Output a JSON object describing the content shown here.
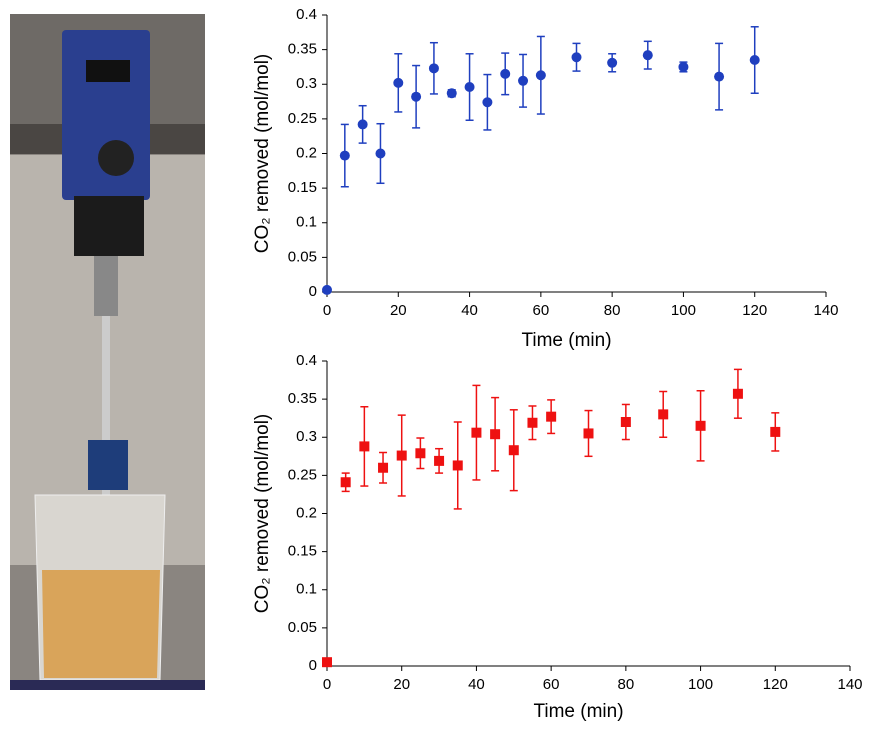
{
  "chart_data": [
    {
      "type": "scatter",
      "x_label": "Time (min)",
      "y_label": "CO₂ removed (mol/mol)",
      "xlim": [
        0,
        140
      ],
      "xticks": [
        0,
        20,
        40,
        60,
        80,
        100,
        120,
        140
      ],
      "ylim": [
        0,
        0.4
      ],
      "yticks": [
        0,
        0.05,
        0.1,
        0.15,
        0.2,
        0.25,
        0.3,
        0.35,
        0.4
      ],
      "series": [
        {
          "color": "#1f3fbf",
          "marker": "circle",
          "x": [
            0,
            5,
            10,
            15,
            20,
            25,
            30,
            35,
            40,
            45,
            50,
            55,
            60,
            70,
            80,
            90,
            100,
            110,
            120
          ],
          "values": [
            0.003,
            0.197,
            0.242,
            0.2,
            0.302,
            0.282,
            0.323,
            0.287,
            0.296,
            0.274,
            0.315,
            0.305,
            0.313,
            0.339,
            0.331,
            0.342,
            0.325,
            0.311,
            0.335
          ],
          "errors": [
            0,
            0.045,
            0.027,
            0.043,
            0.042,
            0.045,
            0.037,
            0.005,
            0.048,
            0.04,
            0.03,
            0.038,
            0.056,
            0.02,
            0.013,
            0.02,
            0.007,
            0.048,
            0.048
          ]
        }
      ]
    },
    {
      "type": "scatter",
      "x_label": "Time (min)",
      "y_label": "CO₂ removed (mol/mol)",
      "xlim": [
        0,
        140
      ],
      "xticks": [
        0,
        20,
        40,
        60,
        80,
        100,
        120,
        140
      ],
      "ylim": [
        0,
        0.4
      ],
      "yticks": [
        0,
        0.05,
        0.1,
        0.15,
        0.2,
        0.25,
        0.3,
        0.35,
        0.4
      ],
      "series": [
        {
          "color": "#ee1111",
          "marker": "square",
          "x": [
            0,
            5,
            10,
            15,
            20,
            25,
            30,
            35,
            40,
            45,
            50,
            55,
            60,
            70,
            80,
            90,
            100,
            110,
            120
          ],
          "values": [
            0.005,
            0.241,
            0.288,
            0.26,
            0.276,
            0.279,
            0.269,
            0.263,
            0.306,
            0.304,
            0.283,
            0.319,
            0.327,
            0.305,
            0.32,
            0.33,
            0.315,
            0.357,
            0.307
          ],
          "errors": [
            0,
            0.012,
            0.052,
            0.02,
            0.053,
            0.02,
            0.016,
            0.057,
            0.062,
            0.048,
            0.053,
            0.022,
            0.022,
            0.03,
            0.023,
            0.03,
            0.046,
            0.032,
            0.025
          ]
        }
      ]
    }
  ]
}
